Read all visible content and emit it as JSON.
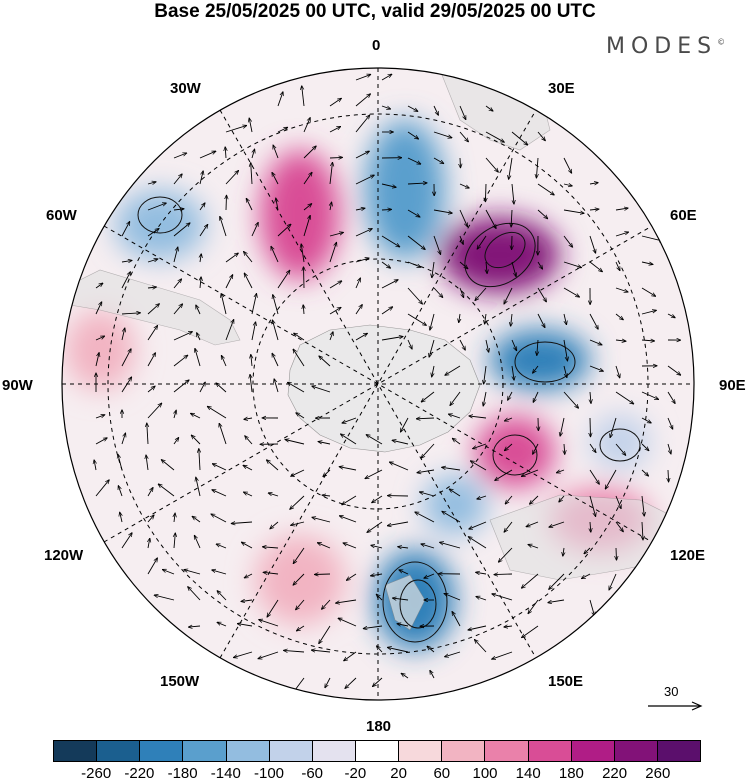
{
  "title": "Base 25/05/2025 00 UTC, valid 29/05/2025 00 UTC",
  "brand": {
    "name": "MODES",
    "mark": "©"
  },
  "map": {
    "projection": "south polar stereographic",
    "longitude_labels": {
      "top": "0",
      "top_right": "30E",
      "right_upper": "60E",
      "right": "90E",
      "right_lower": "120E",
      "bottom_right": "150E",
      "bottom": "180",
      "bottom_left": "150W",
      "left_lower": "120W",
      "left": "90W",
      "left_upper": "60W",
      "top_left": "30W"
    },
    "reference_vector": {
      "label": "30",
      "icon": "arrow-right-icon"
    }
  },
  "colorbar": {
    "colors": [
      "#143a5a",
      "#1b5f8f",
      "#2f80b9",
      "#5a9fcd",
      "#93bde0",
      "#c2d2ea",
      "#e4e2ef",
      "#ffffff",
      "#f7d9dc",
      "#f2b4c2",
      "#ea81aa",
      "#d94d96",
      "#b01d86",
      "#821278",
      "#5b0f6c"
    ],
    "ticks": [
      "-260",
      "-220",
      "-180",
      "-140",
      "-100",
      "-60",
      "-20",
      "20",
      "60",
      "100",
      "140",
      "180",
      "220",
      "260"
    ]
  },
  "anomalies": [
    {
      "value": -120
    },
    {
      "value": -170
    },
    {
      "value": 170
    },
    {
      "value": 240
    },
    {
      "value": -180
    },
    {
      "value": 150
    },
    {
      "value": -90
    },
    {
      "value": 90
    },
    {
      "value": -200
    },
    {
      "value": 120
    },
    {
      "value": -110
    },
    {
      "value": 70
    }
  ]
}
